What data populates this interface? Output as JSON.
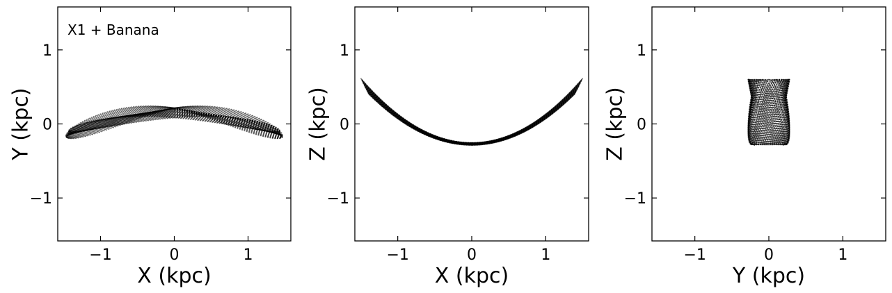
{
  "chart_data": [
    {
      "type": "line",
      "title": "",
      "annotation": "X1 + Banana",
      "xlabel": "X (kpc)",
      "ylabel": "Y (kpc)",
      "xlim": [
        -1.58,
        1.58
      ],
      "ylim": [
        -1.58,
        1.58
      ],
      "xticks": [
        -1,
        0,
        1
      ],
      "yticks": [
        -1,
        0,
        1
      ],
      "xtick_labels": [
        "−1",
        "0",
        "1"
      ],
      "ytick_labels": [
        "−1",
        "0",
        "1"
      ],
      "grid": false,
      "orbit": {
        "projection": "x-y",
        "x_amplitude": 1.47,
        "y_amplitude": 0.26,
        "y_inner": 0.1,
        "color": "#000000"
      }
    },
    {
      "type": "line",
      "title": "",
      "xlabel": "X (kpc)",
      "ylabel": "Z (kpc)",
      "xlim": [
        -1.58,
        1.58
      ],
      "ylim": [
        -1.58,
        1.58
      ],
      "xticks": [
        -1,
        0,
        1
      ],
      "yticks": [
        -1,
        0,
        1
      ],
      "xtick_labels": [
        "−1",
        "0",
        "1"
      ],
      "ytick_labels": [
        "−1",
        "0",
        "1"
      ],
      "grid": false,
      "orbit": {
        "projection": "x-z",
        "x_amplitude": 1.5,
        "z_min": -0.27,
        "z_max": 0.6,
        "color": "#000000"
      }
    },
    {
      "type": "line",
      "title": "",
      "xlabel": "Y (kpc)",
      "ylabel": "Z (kpc)",
      "xlim": [
        -1.58,
        1.58
      ],
      "ylim": [
        -1.58,
        1.58
      ],
      "xticks": [
        -1,
        0,
        1
      ],
      "yticks": [
        -1,
        0,
        1
      ],
      "xtick_labels": [
        "−1",
        "0",
        "1"
      ],
      "ytick_labels": [
        "−1",
        "0",
        "1"
      ],
      "grid": false,
      "orbit": {
        "projection": "y-z",
        "y_amplitude": 0.28,
        "z_min": -0.28,
        "z_max": 0.6,
        "color": "#000000"
      }
    }
  ]
}
